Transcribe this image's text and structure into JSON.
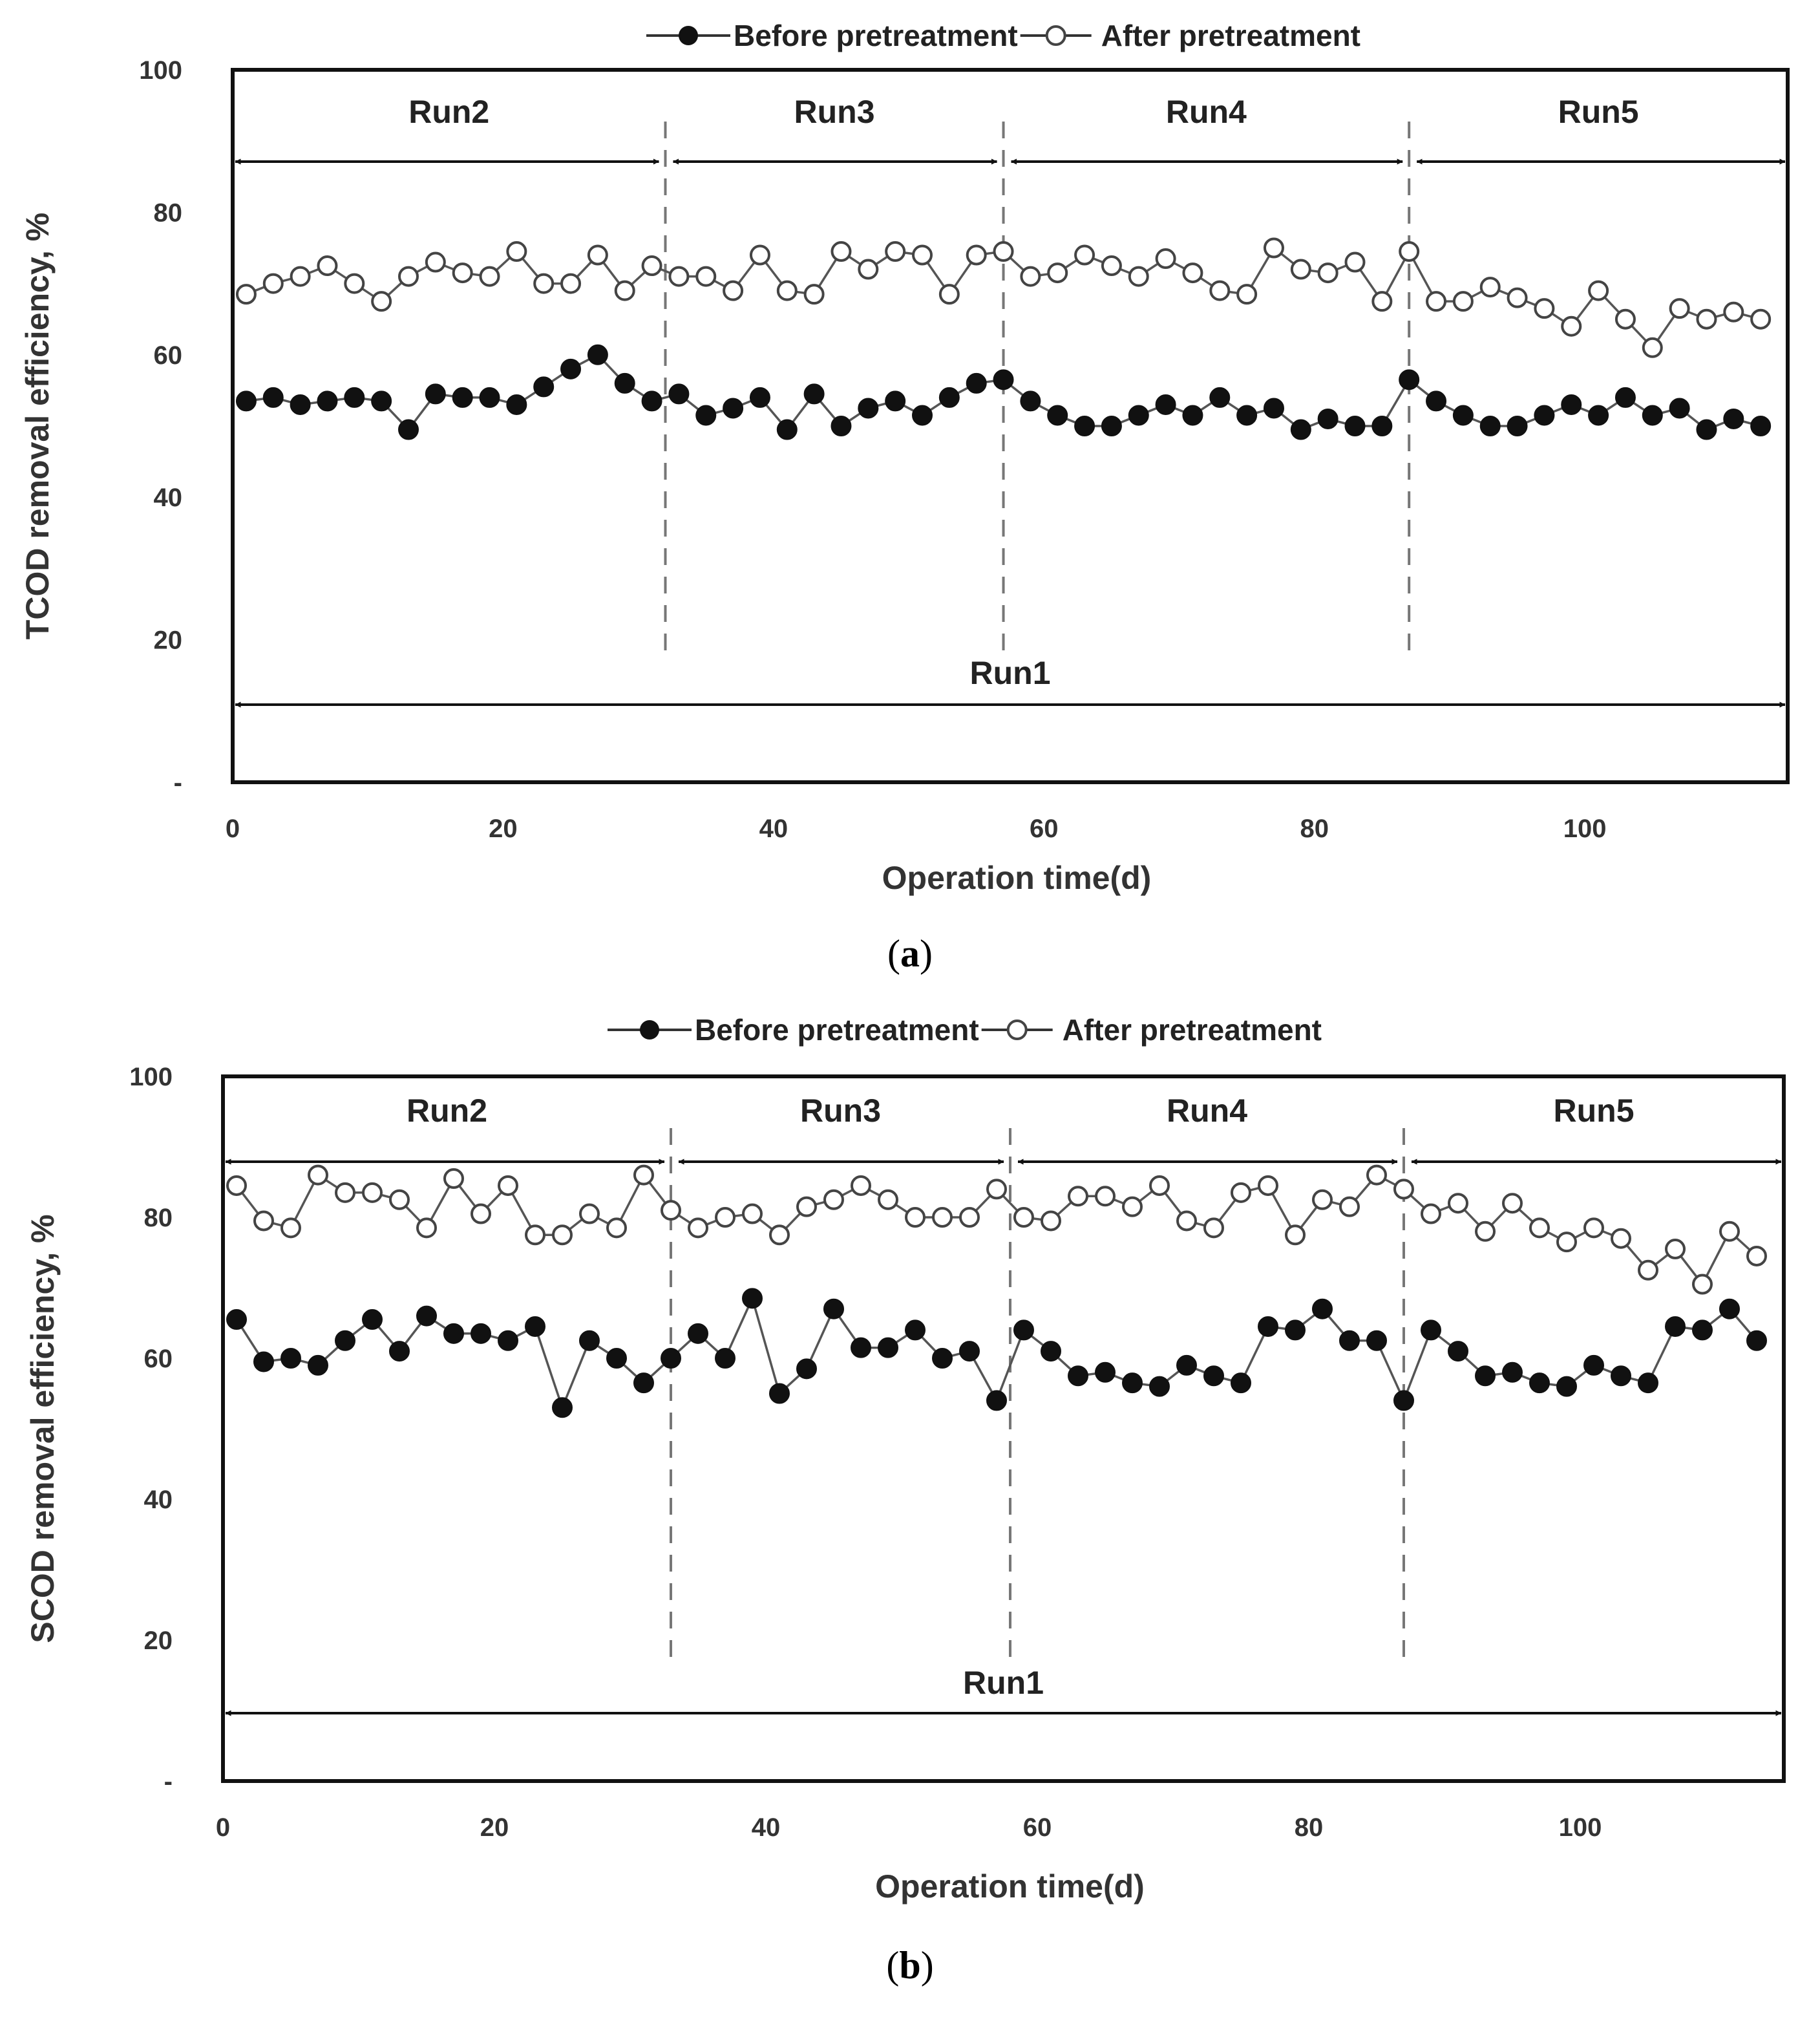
{
  "chart_data": [
    {
      "panel": "a",
      "type": "line",
      "title": "",
      "caption": "(a)",
      "caption_letter": "a",
      "xlabel": "Operation time(d)",
      "ylabel": "TCOD  removal efficiency, %",
      "xlim": [
        0,
        115
      ],
      "ylim": [
        0,
        100
      ],
      "xticks": [
        "0",
        "20",
        "40",
        "60",
        "80",
        "100"
      ],
      "xtick_values": [
        0,
        20,
        40,
        60,
        80,
        100
      ],
      "yticks": [
        "-",
        "20",
        "40",
        "60",
        "80",
        "100"
      ],
      "ytick_values": [
        0,
        20,
        40,
        60,
        80,
        100
      ],
      "grid": false,
      "legend": {
        "placement": "top-center",
        "entries": [
          "Before pretreatment",
          "After pretreatment"
        ]
      },
      "x": [
        1,
        3,
        5,
        7,
        9,
        11,
        13,
        15,
        17,
        19,
        21,
        23,
        25,
        27,
        29,
        31,
        33,
        35,
        37,
        39,
        41,
        43,
        45,
        47,
        49,
        51,
        53,
        55,
        57,
        59,
        61,
        63,
        65,
        67,
        69,
        71,
        73,
        75,
        77,
        79,
        81,
        83,
        85,
        87,
        89,
        91,
        93,
        95,
        97,
        99,
        101,
        103,
        105,
        107,
        109,
        111,
        113
      ],
      "series": [
        {
          "name": "Before pretreatment",
          "marker": "filled",
          "values": [
            53.5,
            54,
            53,
            53.5,
            54,
            53.5,
            49.5,
            54.5,
            54,
            54,
            53,
            55.5,
            58,
            60,
            56,
            53.5,
            54.5,
            51.5,
            52.5,
            54,
            49.5,
            54.5,
            50,
            52.5,
            53.5,
            51.5,
            54,
            56,
            56.5,
            53.5,
            51.5,
            50,
            50,
            51.5,
            53,
            51.5,
            54,
            51.5,
            52.5,
            49.5,
            51,
            50,
            50,
            56.5,
            53.5,
            51.5,
            50,
            50,
            51.5,
            53,
            51.5,
            54,
            51.5,
            52.5,
            49.5,
            51,
            50
          ]
        },
        {
          "name": "After pretreatment",
          "marker": "open",
          "values": [
            68.5,
            70,
            71,
            72.5,
            70,
            67.5,
            71,
            73,
            71.5,
            71,
            74.5,
            70,
            70,
            74,
            69,
            72.5,
            71,
            71,
            69,
            74,
            69,
            68.5,
            74.5,
            72,
            74.5,
            74,
            68.5,
            74,
            74.5,
            71,
            71.5,
            74,
            72.5,
            71,
            73.5,
            71.5,
            69,
            68.5,
            75,
            72,
            71.5,
            73,
            67.5,
            74.5,
            67.5,
            67.5,
            69.5,
            68,
            66.5,
            64,
            69,
            65,
            61,
            66.5,
            65,
            66,
            65
          ]
        }
      ],
      "dividers": [
        32,
        57,
        87
      ],
      "runs": [
        {
          "label": "Run2",
          "start": 0,
          "end": 32
        },
        {
          "label": "Run3",
          "start": 32,
          "end": 57
        },
        {
          "label": "Run4",
          "start": 57,
          "end": 87
        },
        {
          "label": "Run5",
          "start": 87,
          "end": 115
        },
        {
          "label": "Run1",
          "start": 0,
          "end": 115
        }
      ]
    },
    {
      "panel": "b",
      "type": "line",
      "title": "",
      "caption": "(b)",
      "caption_letter": "b",
      "xlabel": "Operation time(d)",
      "ylabel": "SCOD removal efficiency, %",
      "xlim": [
        0,
        115
      ],
      "ylim": [
        0,
        100
      ],
      "xticks": [
        "0",
        "20",
        "40",
        "60",
        "80",
        "100"
      ],
      "xtick_values": [
        0,
        20,
        40,
        60,
        80,
        100
      ],
      "yticks": [
        "-",
        "20",
        "40",
        "60",
        "80",
        "100"
      ],
      "ytick_values": [
        0,
        20,
        40,
        60,
        80,
        100
      ],
      "grid": false,
      "legend": {
        "placement": "top-center",
        "entries": [
          "Before pretreatment",
          "After pretreatment"
        ]
      },
      "x": [
        1,
        3,
        5,
        7,
        9,
        11,
        13,
        15,
        17,
        19,
        21,
        23,
        25,
        27,
        29,
        31,
        33,
        35,
        37,
        39,
        41,
        43,
        45,
        47,
        49,
        51,
        53,
        55,
        57,
        59,
        61,
        63,
        65,
        67,
        69,
        71,
        73,
        75,
        77,
        79,
        81,
        83,
        85,
        87,
        89,
        91,
        93,
        95,
        97,
        99,
        101,
        103,
        105,
        107,
        109,
        111,
        113
      ],
      "series": [
        {
          "name": "Before pretreatment",
          "marker": "filled",
          "values": [
            65.5,
            59.5,
            60,
            59,
            62.5,
            65.5,
            61,
            66,
            63.5,
            63.5,
            62.5,
            64.5,
            53,
            62.5,
            60,
            56.5,
            60,
            63.5,
            60,
            68.5,
            55,
            58.5,
            67,
            61.5,
            61.5,
            64,
            60,
            61,
            54,
            64,
            61,
            57.5,
            58,
            56.5,
            56,
            59,
            57.5,
            56.5,
            64.5,
            64,
            67,
            62.5,
            62.5,
            54,
            64,
            61,
            57.5,
            58,
            56.5,
            56,
            59,
            57.5,
            56.5,
            64.5,
            64,
            67,
            62.5
          ]
        },
        {
          "name": "After pretreatment",
          "marker": "open",
          "values": [
            84.5,
            79.5,
            78.5,
            86,
            83.5,
            83.5,
            82.5,
            78.5,
            85.5,
            80.5,
            84.5,
            77.5,
            77.5,
            80.5,
            78.5,
            86,
            81,
            78.5,
            80,
            80.5,
            77.5,
            81.5,
            82.5,
            84.5,
            82.5,
            80,
            80,
            80,
            84,
            80,
            79.5,
            83,
            83,
            81.5,
            84.5,
            79.5,
            78.5,
            83.5,
            84.5,
            77.5,
            82.5,
            81.5,
            86,
            84,
            80.5,
            82,
            78,
            82,
            78.5,
            76.5,
            78.5,
            77,
            72.5,
            75.5,
            70.5,
            78,
            74.5
          ]
        }
      ],
      "dividers": [
        33,
        58,
        87
      ],
      "runs": [
        {
          "label": "Run2",
          "start": 0,
          "end": 33
        },
        {
          "label": "Run3",
          "start": 33,
          "end": 58
        },
        {
          "label": "Run4",
          "start": 58,
          "end": 87
        },
        {
          "label": "Run5",
          "start": 87,
          "end": 115
        },
        {
          "label": "Run1",
          "start": 0,
          "end": 115
        }
      ]
    }
  ]
}
